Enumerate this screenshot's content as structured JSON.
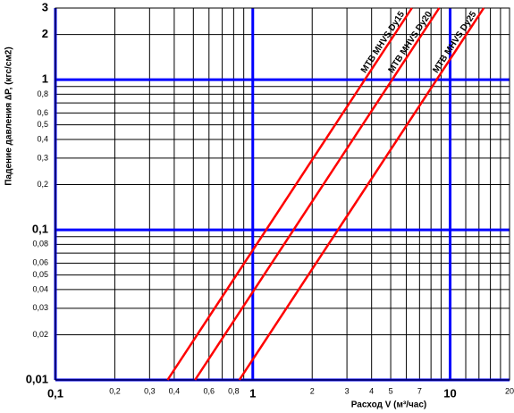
{
  "chart_data": {
    "type": "line",
    "y_label": "Падение давления ∆P, (кгс/см2)",
    "x_label": "Расход  V (м³/час)",
    "log_x": true,
    "log_y": true,
    "grid": true,
    "xlim": [
      0.1,
      20
    ],
    "ylim": [
      0.01,
      3
    ],
    "xticks": [
      {
        "value": 0.1,
        "label": "0,1"
      },
      {
        "value": 0.2,
        "label": "0,2"
      },
      {
        "value": 0.3,
        "label": "0,3"
      },
      {
        "value": 0.4,
        "label": "0,4"
      },
      {
        "value": 0.6,
        "label": "0,6"
      },
      {
        "value": 0.8,
        "label": "0,8"
      },
      1,
      2,
      3,
      4,
      5,
      7,
      10,
      20
    ],
    "yticks": [
      {
        "value": 0.01,
        "label": "0,01"
      },
      {
        "value": 0.02,
        "label": "0,02"
      },
      {
        "value": 0.03,
        "label": "0,03"
      },
      {
        "value": 0.04,
        "label": "0,04"
      },
      {
        "value": 0.05,
        "label": "0,05"
      },
      {
        "value": 0.06,
        "label": "0,06"
      },
      {
        "value": 0.08,
        "label": "0,08"
      },
      {
        "value": 0.1,
        "label": "0,1"
      },
      {
        "value": 0.2,
        "label": "0,2"
      },
      {
        "value": 0.3,
        "label": "0,3"
      },
      {
        "value": 0.4,
        "label": "0,4"
      },
      {
        "value": 0.5,
        "label": "0,5"
      },
      {
        "value": 0.6,
        "label": "0,6"
      },
      {
        "value": 0.8,
        "label": "0,8"
      },
      1,
      2,
      3
    ],
    "xgrid": [
      0.5,
      0.7,
      0.9,
      6,
      8,
      9,
      12,
      14,
      16,
      18
    ],
    "ygrid": [
      0.07,
      0.09,
      0.7,
      0.9
    ],
    "major_color": "#0000ff",
    "grid_color": "#000000",
    "series": [
      {
        "name": "МТВ МНVS Dy15",
        "color": "#ff0000",
        "x": [
          0.37,
          6.4
        ],
        "values": [
          0.01,
          3
        ]
      },
      {
        "name": "МТВ МНVS Dy20",
        "color": "#ff0000",
        "x": [
          0.51,
          8.8
        ],
        "values": [
          0.01,
          3
        ]
      },
      {
        "name": "МТВ МНVS Dy25",
        "color": "#ff0000",
        "x": [
          0.855,
          14.8
        ],
        "values": [
          0.01,
          3
        ]
      }
    ]
  }
}
